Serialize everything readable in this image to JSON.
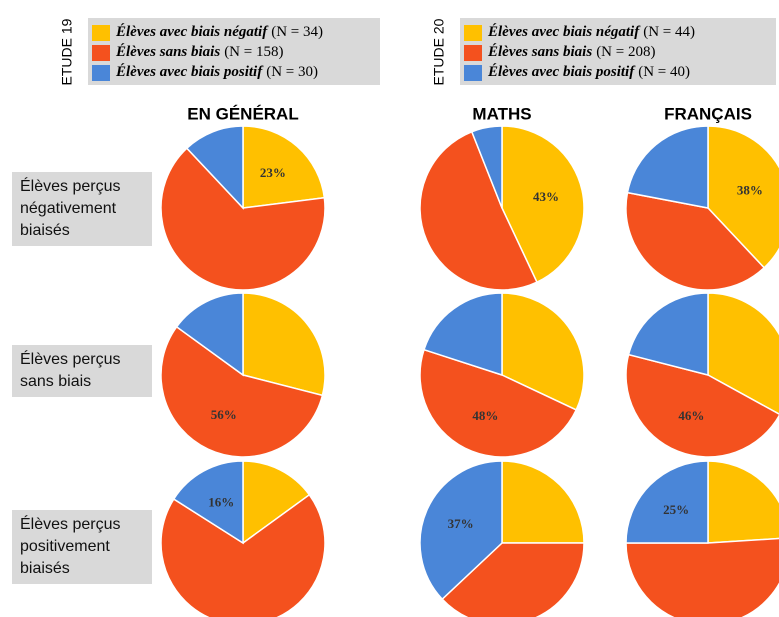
{
  "studies": [
    {
      "label": "ETUDE 19",
      "legend": [
        {
          "name": "Élèves avec biais négatif",
          "n": "(N = 34)",
          "color": "#ffc000"
        },
        {
          "name": "Élèves sans biais",
          "n": "(N = 158)",
          "color": "#f4511e"
        },
        {
          "name": "Élèves avec biais positif",
          "n": "(N = 30)",
          "color": "#4a86d8"
        }
      ]
    },
    {
      "label": "ETUDE 20",
      "legend": [
        {
          "name": "Élèves avec biais négatif",
          "n": "(N = 44)",
          "color": "#ffc000"
        },
        {
          "name": "Élèves sans biais",
          "n": "(N = 208)",
          "color": "#f4511e"
        },
        {
          "name": "Élèves avec biais positif",
          "n": "(N = 40)",
          "color": "#4a86d8"
        }
      ]
    }
  ],
  "columns": [
    "EN GÉNÉRAL",
    "MATHS",
    "FRANÇAIS"
  ],
  "rows": [
    "Élèves perçus négativement biaisés",
    "Élèves perçus sans biais",
    "Élèves perçus positivement biaisés"
  ],
  "chart_data": [
    {
      "type": "pie",
      "values": [
        23,
        65,
        12
      ],
      "value_labels": [
        "23%",
        null,
        null
      ]
    },
    {
      "type": "pie",
      "values": [
        43,
        51,
        6
      ],
      "value_labels": [
        "43%",
        null,
        null
      ]
    },
    {
      "type": "pie",
      "values": [
        38,
        40,
        22
      ],
      "value_labels": [
        "38%",
        null,
        null
      ]
    },
    {
      "type": "pie",
      "values": [
        29,
        56,
        15
      ],
      "value_labels": [
        null,
        "56%",
        null
      ]
    },
    {
      "type": "pie",
      "values": [
        32,
        48,
        20
      ],
      "value_labels": [
        null,
        "48%",
        null
      ]
    },
    {
      "type": "pie",
      "values": [
        33,
        46,
        21
      ],
      "value_labels": [
        null,
        "46%",
        null
      ]
    },
    {
      "type": "pie",
      "values": [
        15,
        69,
        16
      ],
      "value_labels": [
        null,
        null,
        "16%"
      ]
    },
    {
      "type": "pie",
      "values": [
        25,
        38,
        37
      ],
      "value_labels": [
        null,
        null,
        "37%"
      ]
    },
    {
      "type": "pie",
      "values": [
        24,
        51,
        25
      ],
      "value_labels": [
        null,
        null,
        "25%"
      ]
    }
  ]
}
